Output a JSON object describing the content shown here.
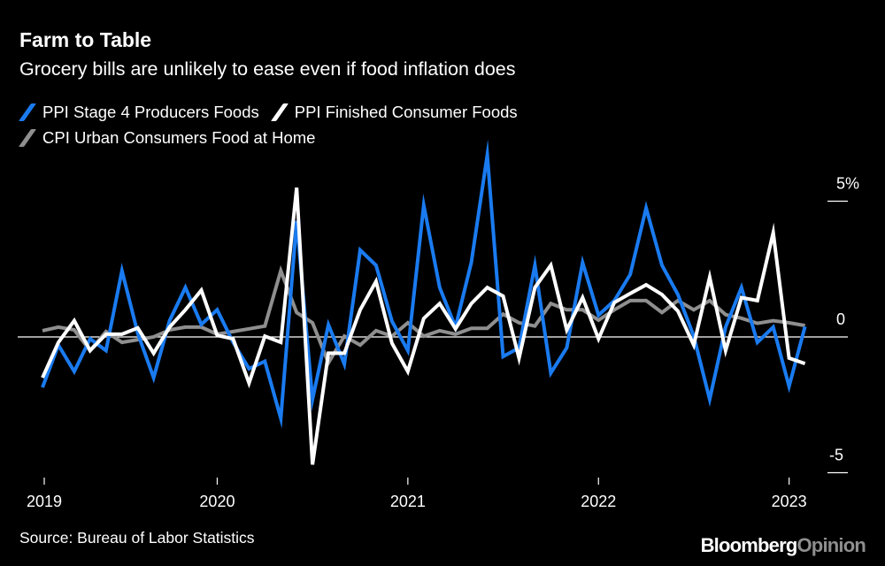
{
  "header": {
    "title": "Farm to Table",
    "subtitle": "Grocery bills are unlikely to ease even if food inflation does"
  },
  "footer": {
    "source": "Source: Bureau of Labor Statistics",
    "logo_brand": "Bloomberg",
    "logo_suffix": "Opinion"
  },
  "chart_data": {
    "type": "line",
    "title": "Farm to Table",
    "subtitle": "Grocery bills are unlikely to ease even if food inflation does",
    "xlabel": "",
    "ylabel": "",
    "ylim": [
      -5,
      5
    ],
    "yticks": [
      5,
      0,
      -5
    ],
    "ytick_labels": [
      "5%",
      "0",
      "-5"
    ],
    "xticks": [
      "2019",
      "2020",
      "2021",
      "2022",
      "2023"
    ],
    "grid": false,
    "zero_line": true,
    "legend_position": "top-left",
    "x": [
      "2019-02",
      "2019-03",
      "2019-04",
      "2019-05",
      "2019-06",
      "2019-07",
      "2019-08",
      "2019-09",
      "2019-10",
      "2019-11",
      "2019-12",
      "2020-01",
      "2020-02",
      "2020-03",
      "2020-04",
      "2020-05",
      "2020-06",
      "2020-07",
      "2020-08",
      "2020-09",
      "2020-10",
      "2020-11",
      "2020-12",
      "2021-01",
      "2021-02",
      "2021-03",
      "2021-04",
      "2021-05",
      "2021-06",
      "2021-07",
      "2021-08",
      "2021-09",
      "2021-10",
      "2021-11",
      "2021-12",
      "2022-01",
      "2022-02",
      "2022-03",
      "2022-04",
      "2022-05",
      "2022-06",
      "2022-07",
      "2022-08",
      "2022-09",
      "2022-10",
      "2022-11",
      "2022-12",
      "2023-01",
      "2023-02"
    ],
    "series": [
      {
        "name": "PPI Stage 4 Producers Foods",
        "color": "#1a7bf0",
        "values": [
          -1.86,
          -0.3,
          -1.27,
          -0.07,
          -0.5,
          2.44,
          0.13,
          -1.5,
          0.6,
          1.82,
          0.46,
          1.0,
          -0.2,
          -1.17,
          -0.9,
          -3.0,
          4.27,
          -2.3,
          0.45,
          -1.0,
          3.2,
          2.64,
          0.58,
          -0.5,
          4.85,
          1.82,
          0.36,
          2.75,
          6.7,
          -0.72,
          -0.4,
          2.64,
          -1.33,
          -0.4,
          2.74,
          0.8,
          1.34,
          2.3,
          4.75,
          2.64,
          1.56,
          0.03,
          -2.3,
          0.36,
          1.82,
          -0.2,
          0.36,
          -1.82,
          0.38
        ]
      },
      {
        "name": "PPI Finished Consumer Foods",
        "color": "#ffffff",
        "values": [
          -1.5,
          -0.2,
          0.6,
          -0.5,
          0.1,
          0.1,
          0.33,
          -0.6,
          0.36,
          1.0,
          1.72,
          0.06,
          -0.07,
          -1.7,
          0.03,
          -0.2,
          5.5,
          -4.7,
          -0.6,
          -0.6,
          1.0,
          2.05,
          -0.23,
          -1.27,
          0.68,
          1.23,
          0.3,
          1.23,
          1.82,
          1.5,
          -0.78,
          1.82,
          2.64,
          0.26,
          1.45,
          -0.07,
          1.27,
          1.6,
          1.92,
          1.56,
          0.95,
          -0.3,
          2.2,
          -0.5,
          1.45,
          1.34,
          3.84,
          -0.78,
          -0.98
        ]
      },
      {
        "name": "CPI Urban Consumers Food at Home",
        "color": "#8f8f8f",
        "values": [
          0.23,
          0.36,
          0.26,
          -0.5,
          0.2,
          -0.2,
          -0.1,
          0.0,
          0.26,
          0.36,
          0.36,
          0.1,
          0.2,
          0.3,
          0.4,
          2.44,
          0.9,
          0.52,
          -0.95,
          0.03,
          -0.3,
          0.23,
          0.03,
          0.52,
          0.03,
          0.23,
          0.1,
          0.32,
          0.32,
          0.84,
          0.52,
          0.4,
          1.23,
          1.0,
          1.0,
          0.62,
          1.0,
          1.34,
          1.34,
          0.9,
          1.34,
          1.0,
          1.34,
          0.82,
          0.69,
          0.5,
          0.6,
          0.52,
          0.42
        ]
      }
    ]
  }
}
